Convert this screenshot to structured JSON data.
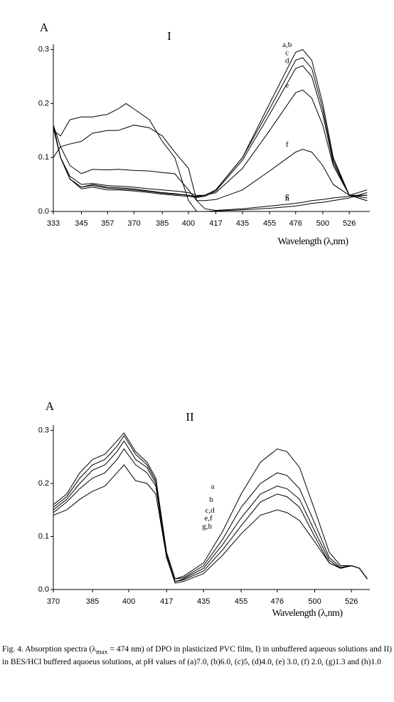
{
  "charts": [
    {
      "type": "line",
      "title": "I",
      "ylabel": "A",
      "xlabel": "Wavelength (λ,nm)",
      "xscale": "reciprocal",
      "xlim": [
        333,
        548
      ],
      "xticks": [
        333,
        345,
        357,
        370,
        385,
        400,
        417,
        435,
        455,
        476,
        500,
        526
      ],
      "ylim": [
        0,
        0.31
      ],
      "yticks": [
        {
          "value": 0,
          "label": "0.0"
        },
        0.1,
        0.2,
        0.3
      ],
      "x": [
        333,
        336,
        340,
        345,
        350,
        357,
        362,
        366,
        370,
        378,
        385,
        392,
        400,
        405,
        410,
        417,
        435,
        455,
        476,
        482,
        490,
        500,
        510,
        526,
        545
      ],
      "series": [
        {
          "name": "a,b",
          "color": "#000000",
          "values": [
            0.16,
            0.1,
            0.06,
            0.045,
            0.05,
            0.045,
            0.044,
            0.043,
            0.042,
            0.038,
            0.035,
            0.033,
            0.03,
            0.028,
            0.03,
            0.04,
            0.1,
            0.2,
            0.295,
            0.3,
            0.28,
            0.2,
            0.1,
            0.03,
            0.02
          ]
        },
        {
          "name": "c",
          "color": "#000000",
          "values": [
            0.16,
            0.1,
            0.06,
            0.045,
            0.048,
            0.043,
            0.042,
            0.041,
            0.04,
            0.037,
            0.034,
            0.032,
            0.03,
            0.027,
            0.03,
            0.04,
            0.1,
            0.19,
            0.28,
            0.285,
            0.265,
            0.19,
            0.095,
            0.03,
            0.02
          ]
        },
        {
          "name": "d",
          "color": "#000000",
          "values": [
            0.155,
            0.1,
            0.06,
            0.042,
            0.045,
            0.04,
            0.04,
            0.039,
            0.038,
            0.035,
            0.032,
            0.03,
            0.028,
            0.026,
            0.028,
            0.038,
            0.095,
            0.18,
            0.265,
            0.27,
            0.25,
            0.18,
            0.09,
            0.03,
            0.025
          ]
        },
        {
          "name": "e",
          "color": "#000000",
          "values": [
            0.155,
            0.1,
            0.065,
            0.05,
            0.052,
            0.048,
            0.047,
            0.046,
            0.045,
            0.042,
            0.04,
            0.038,
            0.035,
            0.03,
            0.03,
            0.035,
            0.08,
            0.15,
            0.22,
            0.225,
            0.21,
            0.16,
            0.085,
            0.03,
            0.03
          ]
        },
        {
          "name": "f",
          "color": "#000000",
          "values": [
            0.16,
            0.12,
            0.085,
            0.07,
            0.078,
            0.077,
            0.078,
            0.077,
            0.076,
            0.075,
            0.072,
            0.07,
            0.04,
            0.02,
            0.02,
            0.022,
            0.04,
            0.075,
            0.11,
            0.115,
            0.11,
            0.085,
            0.05,
            0.03,
            0.04
          ]
        },
        {
          "name": "g",
          "color": "#000000",
          "values": [
            0.1,
            0.12,
            0.125,
            0.13,
            0.145,
            0.15,
            0.15,
            0.155,
            0.16,
            0.155,
            0.14,
            0.11,
            0.08,
            0.02,
            0.005,
            0.002,
            0.005,
            0.01,
            0.015,
            0.017,
            0.02,
            0.022,
            0.025,
            0.028,
            0.03
          ]
        },
        {
          "name": "h",
          "color": "#000000",
          "values": [
            0.15,
            0.14,
            0.17,
            0.175,
            0.175,
            0.18,
            0.19,
            0.2,
            0.19,
            0.17,
            0.13,
            0.1,
            0.02,
            0,
            0,
            0.001,
            0.003,
            0.006,
            0.01,
            0.012,
            0.015,
            0.017,
            0.02,
            0.025,
            0.035
          ]
        }
      ]
    },
    {
      "type": "line",
      "title": "II",
      "ylabel": "A",
      "xlabel": "Wavelength (λ,nm)",
      "xscale": "reciprocal",
      "xlim": [
        370,
        540
      ],
      "xticks": [
        370,
        385,
        400,
        417,
        435,
        455,
        476,
        500,
        526
      ],
      "ylim": [
        0,
        0.31
      ],
      "yticks": [
        {
          "value": 0,
          "label": "0.0"
        },
        0.1,
        0.2,
        0.3
      ],
      "x": [
        370,
        375,
        380,
        385,
        390,
        395,
        398,
        403,
        408,
        412,
        417,
        421,
        425,
        435,
        445,
        455,
        466,
        476,
        482,
        490,
        500,
        510,
        518,
        526,
        532,
        538
      ],
      "series": [
        {
          "name": "a",
          "color": "#000000",
          "values": [
            0.16,
            0.18,
            0.22,
            0.245,
            0.255,
            0.28,
            0.295,
            0.26,
            0.24,
            0.21,
            0.07,
            0.02,
            0.025,
            0.05,
            0.11,
            0.18,
            0.24,
            0.265,
            0.26,
            0.23,
            0.15,
            0.07,
            0.045,
            0.045,
            0.04,
            0.02
          ]
        },
        {
          "name": "b",
          "color": "#000000",
          "values": [
            0.155,
            0.175,
            0.21,
            0.235,
            0.245,
            0.27,
            0.29,
            0.255,
            0.235,
            0.205,
            0.065,
            0.02,
            0.022,
            0.045,
            0.095,
            0.155,
            0.2,
            0.22,
            0.215,
            0.19,
            0.125,
            0.06,
            0.042,
            0.045,
            0.04,
            0.02
          ]
        },
        {
          "name": "c,d",
          "color": "#000000",
          "values": [
            0.15,
            0.17,
            0.2,
            0.225,
            0.235,
            0.26,
            0.28,
            0.245,
            0.23,
            0.2,
            0.06,
            0.015,
            0.02,
            0.04,
            0.085,
            0.135,
            0.18,
            0.195,
            0.19,
            0.17,
            0.11,
            0.055,
            0.04,
            0.045,
            0.04,
            0.02
          ]
        },
        {
          "name": "e,f",
          "color": "#000000",
          "values": [
            0.145,
            0.165,
            0.19,
            0.21,
            0.22,
            0.245,
            0.265,
            0.235,
            0.22,
            0.195,
            0.06,
            0.015,
            0.018,
            0.035,
            0.075,
            0.12,
            0.165,
            0.18,
            0.175,
            0.155,
            0.1,
            0.05,
            0.04,
            0.045,
            0.04,
            0.02
          ]
        },
        {
          "name": "g,h",
          "color": "#000000",
          "values": [
            0.14,
            0.15,
            0.17,
            0.185,
            0.195,
            0.22,
            0.235,
            0.205,
            0.2,
            0.18,
            0.06,
            0.012,
            0.015,
            0.03,
            0.065,
            0.105,
            0.14,
            0.15,
            0.145,
            0.13,
            0.09,
            0.05,
            0.04,
            0.045,
            0.04,
            0.02
          ]
        }
      ]
    }
  ],
  "caption": [
    "Fig. 4. Absorption spectra (λ",
    "max",
    " = 474 nm) of DPO in plasticized PVC film, I) in unbuffered aqueous solutions and II) in BES/HCl buffered aquoeus solutions, at pH values of (a)7.0, (b)6.0, (c)5, (d)4.0, (e) 3.0, (f) 2.0, (g)1.3 and (h)1.0"
  ]
}
